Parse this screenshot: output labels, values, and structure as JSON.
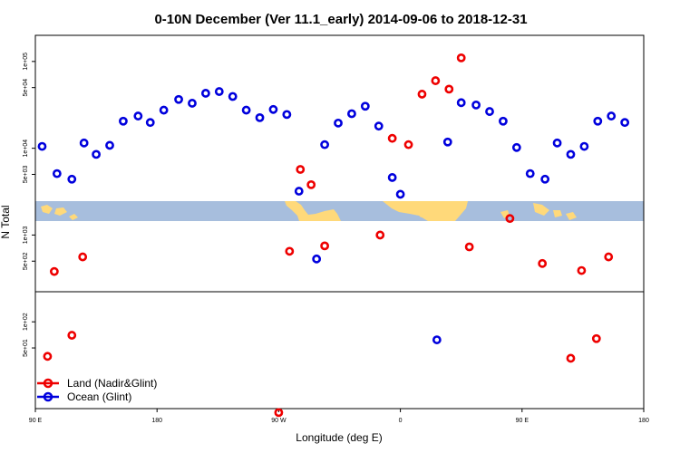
{
  "chart_data": {
    "type": "scatter",
    "title": "0-10N December (Ver 11.1_early)   2014-09-06 to 2018-12-31",
    "xlabel": "Longitude (deg E)",
    "ylabel": "N Total",
    "x_ticks": [
      {
        "value": 90,
        "label": "90 E"
      },
      {
        "value": 180,
        "label": "180"
      },
      {
        "value": 270,
        "label": "90 W"
      },
      {
        "value": 360,
        "label": "0"
      },
      {
        "value": 450,
        "label": "90 E"
      },
      {
        "value": 540,
        "label": "180"
      }
    ],
    "xlim": [
      90,
      540
    ],
    "y_ticks": [
      {
        "value": 100000,
        "label": "1e+05"
      },
      {
        "value": 50000,
        "label": "5e+04"
      },
      {
        "value": 10000,
        "label": "1e+04"
      },
      {
        "value": 5000,
        "label": "5e+03"
      },
      {
        "value": 1000,
        "label": "1e+03"
      },
      {
        "value": 500,
        "label": "5e+02"
      },
      {
        "value": 100,
        "label": "1e+02"
      },
      {
        "value": 50,
        "label": "5e+01"
      }
    ],
    "ylim_log": [
      10,
      200000
    ],
    "colors": {
      "land": "#ee0000",
      "ocean": "#0000dd",
      "map_sea": "#a7bedd",
      "map_land": "#ffd97a"
    },
    "series": [
      {
        "name": "Land (Nadir&Glint)",
        "key": "land",
        "points": [
          {
            "x": 99,
            "y": 40
          },
          {
            "x": 104,
            "y": 380
          },
          {
            "x": 117,
            "y": 70
          },
          {
            "x": 125,
            "y": 560
          },
          {
            "x": 270,
            "y": 9
          },
          {
            "x": 278,
            "y": 650
          },
          {
            "x": 286,
            "y": 5700
          },
          {
            "x": 294,
            "y": 3800
          },
          {
            "x": 304,
            "y": 750
          },
          {
            "x": 345,
            "y": 1000
          },
          {
            "x": 354,
            "y": 13000
          },
          {
            "x": 366,
            "y": 11000
          },
          {
            "x": 376,
            "y": 42000
          },
          {
            "x": 386,
            "y": 60000
          },
          {
            "x": 396,
            "y": 48000
          },
          {
            "x": 405,
            "y": 110000
          },
          {
            "x": 411,
            "y": 730
          },
          {
            "x": 441,
            "y": 1550
          },
          {
            "x": 465,
            "y": 470
          },
          {
            "x": 486,
            "y": 38
          },
          {
            "x": 494,
            "y": 390
          },
          {
            "x": 505,
            "y": 64
          },
          {
            "x": 514,
            "y": 560
          }
        ]
      },
      {
        "name": "Ocean (Glint)",
        "key": "ocean",
        "points": [
          {
            "x": 95,
            "y": 10500
          },
          {
            "x": 106,
            "y": 5100
          },
          {
            "x": 117,
            "y": 4400
          },
          {
            "x": 126,
            "y": 11500
          },
          {
            "x": 135,
            "y": 8500
          },
          {
            "x": 145,
            "y": 10800
          },
          {
            "x": 155,
            "y": 20500
          },
          {
            "x": 166,
            "y": 23500
          },
          {
            "x": 175,
            "y": 19800
          },
          {
            "x": 185,
            "y": 27500
          },
          {
            "x": 196,
            "y": 36500
          },
          {
            "x": 206,
            "y": 33000
          },
          {
            "x": 216,
            "y": 43000
          },
          {
            "x": 226,
            "y": 45000
          },
          {
            "x": 236,
            "y": 39500
          },
          {
            "x": 246,
            "y": 27500
          },
          {
            "x": 256,
            "y": 22500
          },
          {
            "x": 266,
            "y": 28000
          },
          {
            "x": 276,
            "y": 24500
          },
          {
            "x": 285,
            "y": 3200
          },
          {
            "x": 298,
            "y": 530
          },
          {
            "x": 304,
            "y": 11000
          },
          {
            "x": 314,
            "y": 19500
          },
          {
            "x": 324,
            "y": 25000
          },
          {
            "x": 334,
            "y": 30500
          },
          {
            "x": 344,
            "y": 18000
          },
          {
            "x": 354,
            "y": 4600
          },
          {
            "x": 360,
            "y": 2950
          },
          {
            "x": 387,
            "y": 62
          },
          {
            "x": 395,
            "y": 11800
          },
          {
            "x": 405,
            "y": 33500
          },
          {
            "x": 416,
            "y": 31500
          },
          {
            "x": 426,
            "y": 26500
          },
          {
            "x": 436,
            "y": 20500
          },
          {
            "x": 446,
            "y": 10200
          },
          {
            "x": 456,
            "y": 5100
          },
          {
            "x": 467,
            "y": 4400
          },
          {
            "x": 476,
            "y": 11500
          },
          {
            "x": 486,
            "y": 8500
          },
          {
            "x": 496,
            "y": 10500
          },
          {
            "x": 506,
            "y": 20500
          },
          {
            "x": 516,
            "y": 23500
          },
          {
            "x": 526,
            "y": 19800
          }
        ]
      }
    ]
  }
}
